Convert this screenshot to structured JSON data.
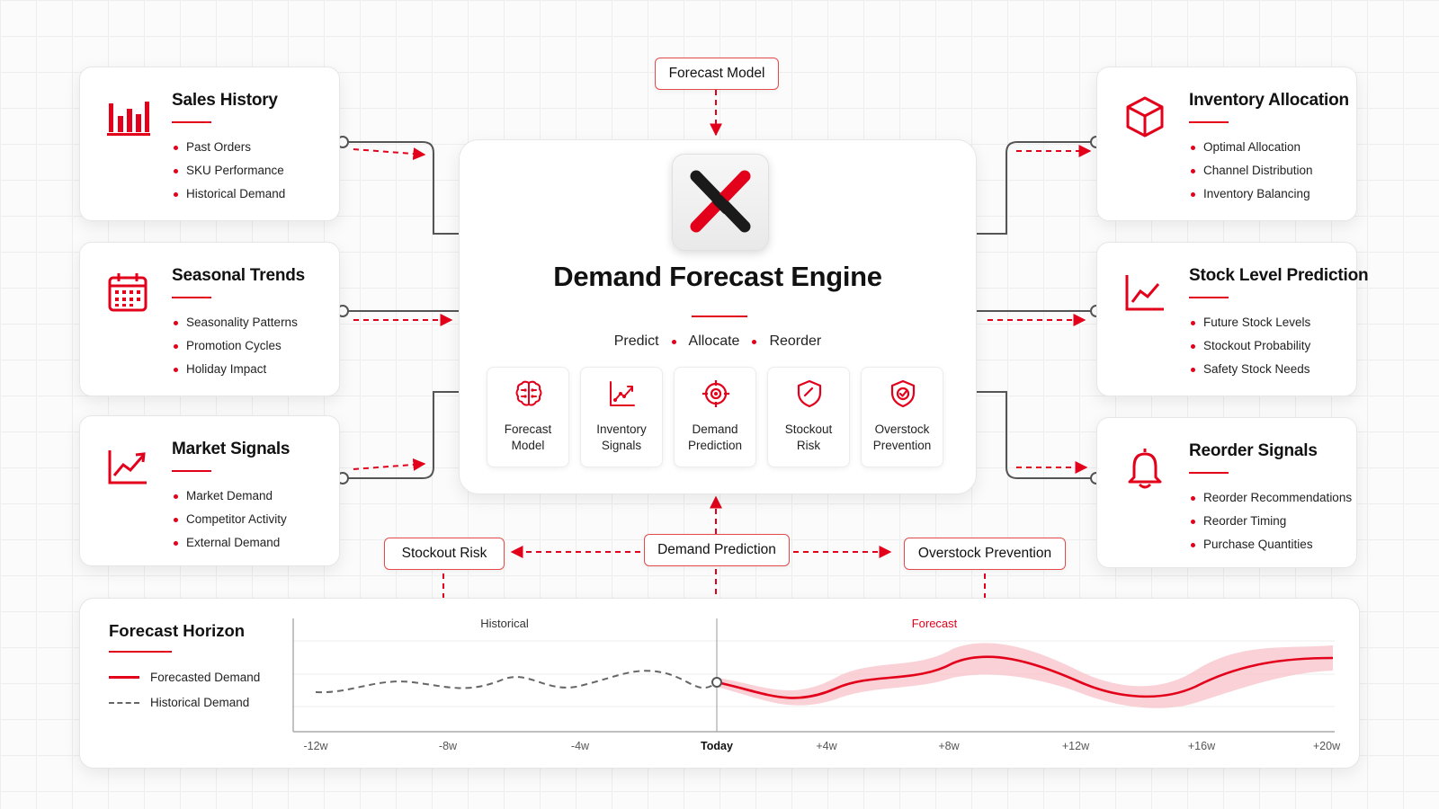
{
  "inputs": [
    {
      "title": "Sales History",
      "icon": "bar-chart-icon",
      "items": [
        "Past Orders",
        "SKU Performance",
        "Historical Demand"
      ]
    },
    {
      "title": "Seasonal Trends",
      "icon": "calendar-icon",
      "items": [
        "Seasonality Patterns",
        "Promotion Cycles",
        "Holiday Impact"
      ]
    },
    {
      "title": "Market Signals",
      "icon": "trend-up-icon",
      "items": [
        "Market Demand",
        "Competitor Activity",
        "External Demand"
      ]
    }
  ],
  "outputs": [
    {
      "title": "Inventory Allocation",
      "icon": "box-icon",
      "items": [
        "Optimal Allocation",
        "Channel Distribution",
        "Inventory Balancing"
      ]
    },
    {
      "title": "Stock Level Prediction",
      "icon": "line-chart-icon",
      "items": [
        "Future Stock Levels",
        "Stockout Probability",
        "Safety Stock Needs"
      ]
    },
    {
      "title": "Reorder Signals",
      "icon": "bell-icon",
      "items": [
        "Reorder Recommendations",
        "Reorder Timing",
        "Purchase Quantities"
      ]
    }
  ],
  "top_pill": "Forecast Model",
  "engine": {
    "logo_icon": "x-logo-icon",
    "title": "Demand Forecast Engine",
    "tags": [
      "Predict",
      "Allocate",
      "Reorder"
    ],
    "modules": [
      {
        "line1": "Forecast",
        "line2": "Model",
        "icon": "brain-icon"
      },
      {
        "line1": "Inventory",
        "line2": "Signals",
        "icon": "chart-arrow-icon"
      },
      {
        "line1": "Demand",
        "line2": "Prediction",
        "icon": "target-icon"
      },
      {
        "line1": "Stockout",
        "line2": "Risk",
        "icon": "shield-gauge-icon"
      },
      {
        "line1": "Overstock",
        "line2": "Prevention",
        "icon": "shield-check-icon"
      }
    ]
  },
  "bottom_pills": {
    "left": "Stockout Risk",
    "center": "Demand Prediction",
    "right": "Overstock Prevention"
  },
  "horizon": {
    "title": "Forecast Horizon",
    "legend": [
      "Forecasted Demand",
      "Historical Demand"
    ],
    "section_historical": "Historical",
    "section_forecast": "Forecast",
    "ticks": [
      "-12w",
      "-8w",
      "-4w",
      "Today",
      "+4w",
      "+8w",
      "+12w",
      "+16w",
      "+20w"
    ]
  },
  "colors": {
    "accent": "#e3001b",
    "band": "#f8c9cf",
    "dashed": "#666666"
  }
}
